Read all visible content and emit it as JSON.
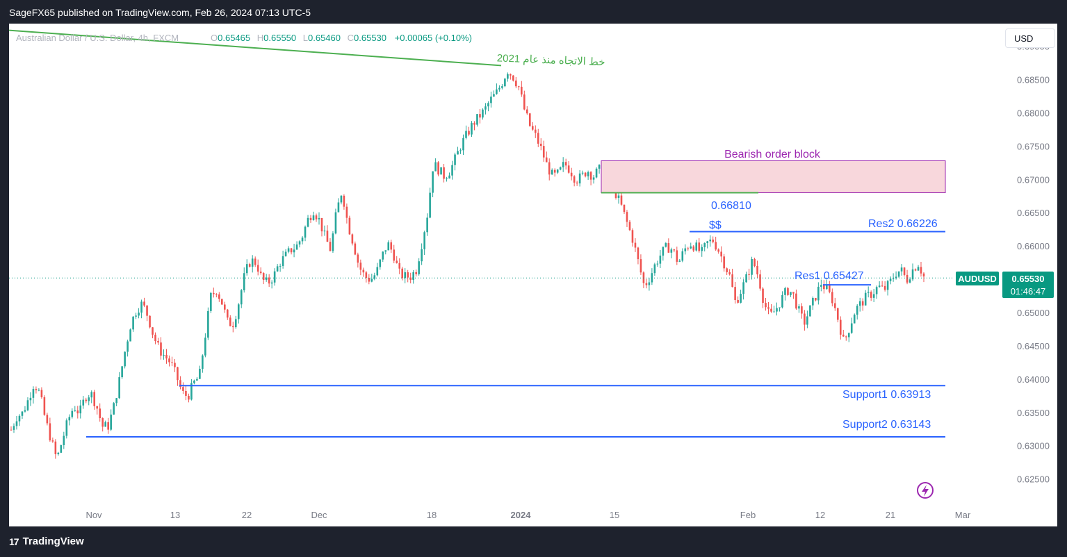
{
  "header": {
    "publisher_line": "SageFX65 published on TradingView.com, Feb 26, 2024 07:13 UTC-5"
  },
  "legend": {
    "symbol_desc": "Australian Dollar / U.S. Dollar, 4h, FXCM",
    "o_label": "O",
    "o_value": "0.65465",
    "h_label": "H",
    "h_value": "0.65550",
    "l_label": "L",
    "l_value": "0.65460",
    "c_label": "C",
    "c_value": "0.65530",
    "change": "+0.00065 (+0.10%)"
  },
  "currency_button": "USD",
  "price_tag": {
    "symbol": "AUDUSD",
    "price": "0.65530",
    "countdown": "01:46:47"
  },
  "annotations": {
    "trendline_label": "خط الاتجاه منذ عام 2021",
    "order_block_label": "Bearish order block",
    "ob_level_label": "0.66810",
    "liquidity_label": "$$",
    "res2_label": "Res2 0.66226",
    "res1_label": "Res1 0.65427",
    "support1_label": "Support1  0.63913",
    "support2_label": "Support2  0.63143"
  },
  "branding": {
    "logo_mark": "17",
    "logo_text": "TradingView"
  },
  "colors": {
    "up": "#26a69a",
    "down": "#ef5350",
    "trendline": "#4caf50",
    "levels": "#2962ff",
    "order_block_fill": "#f8d7dc",
    "order_block_border": "#9c27b0",
    "order_block_text": "#9c27b0",
    "price_tag": "#089981"
  },
  "chart_data": {
    "type": "candlestick",
    "symbol": "AUDUSD",
    "timeframe": "4h",
    "y_ticks": [
      0.625,
      0.63,
      0.635,
      0.64,
      0.645,
      0.65,
      0.655,
      0.66,
      0.665,
      0.67,
      0.675,
      0.68,
      0.685,
      0.69
    ],
    "y_tick_labels": [
      "0.62500",
      "0.63000",
      "0.63500",
      "0.64000",
      "0.64500",
      "0.65000",
      "0.65500",
      "0.66000",
      "0.66500",
      "0.67000",
      "0.67500",
      "0.68000",
      "0.68500",
      "0.69000"
    ],
    "x_ticks": [
      "Nov",
      "13",
      "22",
      "Dec",
      "18",
      "2024",
      "15",
      "Feb",
      "12",
      "21",
      "Mar"
    ],
    "ylim": [
      0.621,
      0.6935
    ],
    "trend_path": [
      [
        0.6325,
        0.6345,
        0.635,
        0.637,
        0.6395,
        0.638,
        0.634,
        0.631,
        0.628,
        0.631,
        0.634,
        0.636,
        0.635,
        0.6375,
        0.638,
        0.636,
        0.633,
        0.633,
        0.636,
        0.64,
        0.6445,
        0.6485,
        0.6505,
        0.6515,
        0.6495,
        0.6465,
        0.6445,
        0.6435,
        0.6425,
        0.6405,
        0.638,
        0.6375,
        0.6395,
        0.6405,
        0.6465,
        0.6525,
        0.6535,
        0.6515,
        0.6485,
        0.6485,
        0.652,
        0.656,
        0.658,
        0.6575,
        0.655,
        0.6545,
        0.6555,
        0.6575,
        0.6585,
        0.6595,
        0.66,
        0.6615,
        0.664,
        0.6655,
        0.664,
        0.6615,
        0.6595,
        0.665,
        0.6685,
        0.6635,
        0.6605,
        0.657,
        0.6555,
        0.655,
        0.656,
        0.6585,
        0.6605,
        0.659,
        0.656,
        0.6555,
        0.6555,
        0.6565,
        0.6605,
        0.665,
        0.6725,
        0.6715,
        0.6705,
        0.6715,
        0.6735,
        0.6755,
        0.677,
        0.6785,
        0.6795,
        0.6805,
        0.682,
        0.683,
        0.6845,
        0.6865,
        0.6855,
        0.684,
        0.6805,
        0.678,
        0.6765,
        0.6745,
        0.672,
        0.6705,
        0.671,
        0.6725,
        0.6715,
        0.67,
        0.6705,
        0.6715,
        0.6705,
        0.6715,
        0.672,
        0.6705,
        0.668,
        0.666,
        0.6635,
        0.661,
        0.6575,
        0.654,
        0.6555,
        0.6575,
        0.659,
        0.66,
        0.6595,
        0.6575,
        0.6595,
        0.6605,
        0.66,
        0.659,
        0.6605,
        0.661,
        0.6595,
        0.6575,
        0.6555,
        0.6515,
        0.6535,
        0.6555,
        0.658,
        0.6555,
        0.6515,
        0.6495,
        0.6505,
        0.652,
        0.6535,
        0.653,
        0.6505,
        0.6485,
        0.6505,
        0.6525,
        0.6545,
        0.6535,
        0.652,
        0.649,
        0.6455,
        0.648,
        0.6505,
        0.6515,
        0.6525,
        0.653,
        0.654,
        0.6535,
        0.6545,
        0.656,
        0.6565,
        0.655,
        0.6565,
        0.6575,
        0.6555
      ]
    ],
    "levels": {
      "trendline_from": 0.6925,
      "trendline_to": 0.6872,
      "order_block_top": 0.6729,
      "order_block_bottom": 0.6681,
      "ob_level": 0.6681,
      "res2": 0.66226,
      "res1": 0.65427,
      "support1": 0.63913,
      "support2": 0.63143,
      "last": 0.6553
    }
  }
}
